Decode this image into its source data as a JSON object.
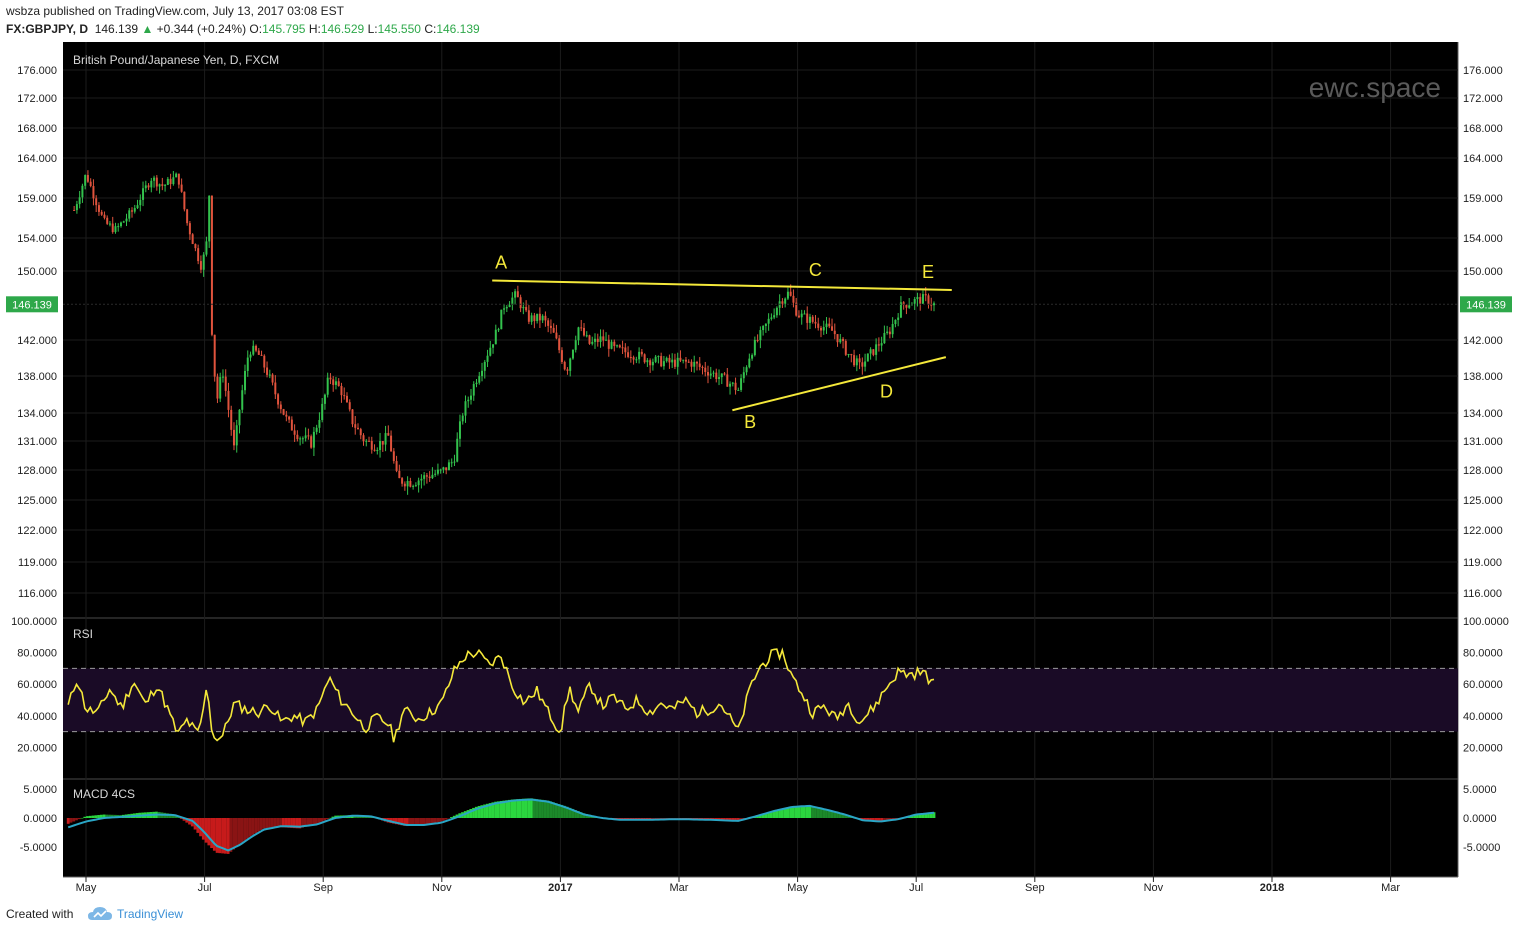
{
  "header": {
    "user": "wsbza",
    "published": "published on TradingView.com, July 13, 2017 03:08 EST",
    "symbol": "FX:GBPJPY, D",
    "last": "146.139",
    "change": "+0.344 (+0.24%)",
    "open_label": "O:",
    "open": "145.795",
    "high_label": "H:",
    "high": "146.529",
    "low_label": "L:",
    "low": "145.550",
    "close_label": "C:",
    "close": "146.139"
  },
  "footer": {
    "created_with": "Created with",
    "brand": "TradingView"
  },
  "colors": {
    "background": "#000000",
    "up_candle": "#33c24d",
    "down_candle": "#e0533d",
    "trendline": "#f4e83a",
    "rsi_line": "#f4e83a",
    "rsi_band": "#1a0b26",
    "macd_signal": "#2aa6c6",
    "macd_hist_pos": "#2bd63f",
    "macd_hist_neg": "#c71b1b",
    "price_tag": "#2ea84a"
  },
  "chart_data": [
    {
      "type": "candlestick",
      "title": "British Pound/Japanese Yen, D, FXCM",
      "watermark": "ewc.space",
      "current_price": "146.139",
      "yticks": [
        "176.000",
        "172.000",
        "168.000",
        "164.000",
        "159.000",
        "154.000",
        "150.000",
        "142.000",
        "138.000",
        "134.000",
        "131.000",
        "128.000",
        "125.000",
        "122.000",
        "119.000",
        "116.000"
      ],
      "ytick_values": [
        176,
        172,
        168,
        164,
        159,
        154,
        150,
        142,
        138,
        134,
        131,
        128,
        125,
        122,
        119,
        116
      ],
      "xticks": [
        "May",
        "Jul",
        "Sep",
        "Nov",
        "2017",
        "Mar",
        "May",
        "Jul",
        "Sep",
        "Nov",
        "2018",
        "Mar"
      ],
      "xtick_months": [
        0,
        2,
        4,
        6,
        8,
        10,
        12,
        14,
        16,
        18,
        20,
        22
      ],
      "annotations": [
        {
          "label": "A",
          "month": 7.0,
          "value": 150.3
        },
        {
          "label": "B",
          "month": 11.2,
          "value": 132.4
        },
        {
          "label": "C",
          "month": 12.3,
          "value": 149.4
        },
        {
          "label": "D",
          "month": 13.5,
          "value": 135.7
        },
        {
          "label": "E",
          "month": 14.2,
          "value": 149.2
        }
      ],
      "trendlines": [
        {
          "from": [
            6.85,
            148.9
          ],
          "to": [
            14.6,
            147.8
          ]
        },
        {
          "from": [
            10.9,
            134.3
          ],
          "to": [
            14.5,
            140.1
          ]
        }
      ],
      "key_closes": [
        {
          "month": -0.2,
          "value": 157.5
        },
        {
          "month": 0.0,
          "value": 162.0
        },
        {
          "month": 0.3,
          "value": 156.0
        },
        {
          "month": 0.5,
          "value": 155.0
        },
        {
          "month": 0.8,
          "value": 157.5
        },
        {
          "month": 1.1,
          "value": 161.5
        },
        {
          "month": 1.3,
          "value": 160.5
        },
        {
          "month": 1.55,
          "value": 161.8
        },
        {
          "month": 1.7,
          "value": 156.0
        },
        {
          "month": 1.85,
          "value": 152.5
        },
        {
          "month": 1.95,
          "value": 150.5
        },
        {
          "month": 2.05,
          "value": 154.0
        },
        {
          "month": 2.08,
          "value": 160.0
        },
        {
          "month": 2.12,
          "value": 143.5
        },
        {
          "month": 2.2,
          "value": 135.0
        },
        {
          "month": 2.3,
          "value": 138.8
        },
        {
          "month": 2.4,
          "value": 134.5
        },
        {
          "month": 2.5,
          "value": 130.0
        },
        {
          "month": 2.6,
          "value": 135.0
        },
        {
          "month": 2.75,
          "value": 141.0
        },
        {
          "month": 2.9,
          "value": 140.5
        },
        {
          "month": 3.05,
          "value": 138.5
        },
        {
          "month": 3.2,
          "value": 136.0
        },
        {
          "month": 3.4,
          "value": 133.0
        },
        {
          "month": 3.6,
          "value": 131.5
        },
        {
          "month": 3.8,
          "value": 130.8
        },
        {
          "month": 4.0,
          "value": 135.0
        },
        {
          "month": 4.1,
          "value": 138.0
        },
        {
          "month": 4.3,
          "value": 136.5
        },
        {
          "month": 4.5,
          "value": 133.0
        },
        {
          "month": 4.7,
          "value": 131.0
        },
        {
          "month": 4.9,
          "value": 130.5
        },
        {
          "month": 5.1,
          "value": 131.5
        },
        {
          "month": 5.25,
          "value": 127.0
        },
        {
          "month": 5.5,
          "value": 126.8
        },
        {
          "month": 5.8,
          "value": 127.5
        },
        {
          "month": 6.0,
          "value": 127.8
        },
        {
          "month": 6.2,
          "value": 129.0
        },
        {
          "month": 6.35,
          "value": 134.0
        },
        {
          "month": 6.6,
          "value": 138.0
        },
        {
          "month": 6.9,
          "value": 142.5
        },
        {
          "month": 7.05,
          "value": 146.0
        },
        {
          "month": 7.25,
          "value": 147.2
        },
        {
          "month": 7.45,
          "value": 144.5
        },
        {
          "month": 7.7,
          "value": 144.5
        },
        {
          "month": 7.9,
          "value": 142.5
        },
        {
          "month": 8.1,
          "value": 138.5
        },
        {
          "month": 8.3,
          "value": 143.5
        },
        {
          "month": 8.5,
          "value": 141.5
        },
        {
          "month": 8.7,
          "value": 142.2
        },
        {
          "month": 8.9,
          "value": 141.0
        },
        {
          "month": 9.2,
          "value": 140.5
        },
        {
          "month": 9.5,
          "value": 139.8
        },
        {
          "month": 9.8,
          "value": 139.5
        },
        {
          "month": 10.2,
          "value": 139.5
        },
        {
          "month": 10.5,
          "value": 138.5
        },
        {
          "month": 10.8,
          "value": 137.5
        },
        {
          "month": 11.0,
          "value": 136.5
        },
        {
          "month": 11.2,
          "value": 140.5
        },
        {
          "month": 11.45,
          "value": 143.5
        },
        {
          "month": 11.7,
          "value": 146.5
        },
        {
          "month": 11.85,
          "value": 147.5
        },
        {
          "month": 12.0,
          "value": 145.0
        },
        {
          "month": 12.3,
          "value": 144.0
        },
        {
          "month": 12.6,
          "value": 143.0
        },
        {
          "month": 12.85,
          "value": 140.5
        },
        {
          "month": 13.05,
          "value": 139.0
        },
        {
          "month": 13.3,
          "value": 141.0
        },
        {
          "month": 13.55,
          "value": 143.0
        },
        {
          "month": 13.75,
          "value": 146.0
        },
        {
          "month": 13.95,
          "value": 146.5
        },
        {
          "month": 14.15,
          "value": 146.8
        },
        {
          "month": 14.3,
          "value": 146.1
        }
      ]
    },
    {
      "type": "line",
      "title": "RSI",
      "yticks": [
        "100.0000",
        "80.0000",
        "60.0000",
        "40.0000",
        "20.0000"
      ],
      "ytick_values": [
        100,
        80,
        60,
        40,
        20
      ],
      "bands": [
        30,
        70
      ],
      "x_month": [
        -0.3,
        -0.15,
        0,
        0.2,
        0.4,
        0.6,
        0.8,
        1.0,
        1.2,
        1.4,
        1.55,
        1.7,
        1.9,
        2.05,
        2.1,
        2.15,
        2.3,
        2.5,
        2.7,
        2.9,
        3.1,
        3.3,
        3.5,
        3.7,
        3.9,
        4.1,
        4.3,
        4.5,
        4.7,
        4.9,
        5.1,
        5.2,
        5.35,
        5.6,
        5.8,
        6.0,
        6.2,
        6.4,
        6.6,
        6.8,
        7.0,
        7.2,
        7.4,
        7.6,
        7.8,
        8.0,
        8.15,
        8.3,
        8.5,
        8.7,
        8.9,
        9.1,
        9.3,
        9.5,
        9.7,
        9.9,
        10.1,
        10.3,
        10.5,
        10.7,
        10.9,
        11.0,
        11.2,
        11.35,
        11.55,
        11.75,
        11.9,
        12.05,
        12.25,
        12.45,
        12.65,
        12.85,
        13.05,
        13.3,
        13.5,
        13.7,
        13.9,
        14.1,
        14.3
      ],
      "values": [
        46,
        64,
        44,
        42,
        57,
        45,
        62,
        47,
        60,
        42,
        28,
        37,
        28,
        60,
        37,
        26,
        27,
        48,
        44,
        42,
        47,
        36,
        40,
        36,
        44,
        64,
        50,
        42,
        32,
        39,
        35,
        25,
        44,
        38,
        42,
        48,
        68,
        78,
        80,
        72,
        78,
        58,
        48,
        56,
        42,
        30,
        58,
        42,
        60,
        46,
        52,
        44,
        50,
        42,
        48,
        44,
        50,
        42,
        44,
        48,
        36,
        30,
        58,
        70,
        78,
        80,
        65,
        56,
        42,
        46,
        38,
        48,
        36,
        46,
        58,
        68,
        66,
        68,
        60
      ]
    },
    {
      "type": "bar+line",
      "title": "MACD 4CS",
      "yticks": [
        "5.0000",
        "0.0000",
        "-5.0000"
      ],
      "ytick_values": [
        5,
        0,
        -5
      ],
      "hist_month": [
        -0.3,
        0,
        0.3,
        0.6,
        0.9,
        1.2,
        1.5,
        1.8,
        2.0,
        2.2,
        2.4,
        2.6,
        2.8,
        3.0,
        3.3,
        3.6,
        3.9,
        4.2,
        4.5,
        4.8,
        5.1,
        5.4,
        5.7,
        6.0,
        6.3,
        6.6,
        6.9,
        7.2,
        7.5,
        7.8,
        8.1,
        8.4,
        8.7,
        9.0,
        9.5,
        10.0,
        10.5,
        11.0,
        11.3,
        11.6,
        11.9,
        12.2,
        12.5,
        12.8,
        13.1,
        13.4,
        13.7,
        14.0,
        14.3
      ],
      "hist_values": [
        -1.0,
        0.3,
        0.6,
        0.5,
        0.9,
        1.1,
        0.6,
        -1.5,
        -4.0,
        -6.0,
        -6.2,
        -4.5,
        -3.0,
        -1.8,
        -1.6,
        -1.8,
        -1.0,
        0.4,
        0.5,
        0.3,
        -0.8,
        -1.4,
        -1.2,
        -0.6,
        0.8,
        2.0,
        2.8,
        3.2,
        3.4,
        3.0,
        2.0,
        0.8,
        0.0,
        -0.2,
        -0.3,
        -0.2,
        -0.4,
        -0.6,
        0.4,
        1.2,
        1.8,
        2.0,
        1.4,
        0.6,
        -0.4,
        -0.7,
        -0.2,
        0.6,
        1.0
      ],
      "signal_values": [
        -1.6,
        -0.6,
        0.0,
        0.2,
        0.4,
        0.6,
        0.5,
        -0.5,
        -2.5,
        -4.8,
        -5.6,
        -4.6,
        -3.2,
        -2.0,
        -1.4,
        -1.5,
        -1.1,
        0.0,
        0.4,
        0.3,
        -0.5,
        -1.2,
        -1.2,
        -0.8,
        0.3,
        1.6,
        2.5,
        3.0,
        3.2,
        2.8,
        1.8,
        0.6,
        0.0,
        -0.3,
        -0.3,
        -0.2,
        -0.3,
        -0.5,
        0.3,
        1.2,
        1.9,
        2.1,
        1.4,
        0.6,
        -0.4,
        -0.6,
        -0.2,
        0.6,
        0.9
      ]
    }
  ]
}
